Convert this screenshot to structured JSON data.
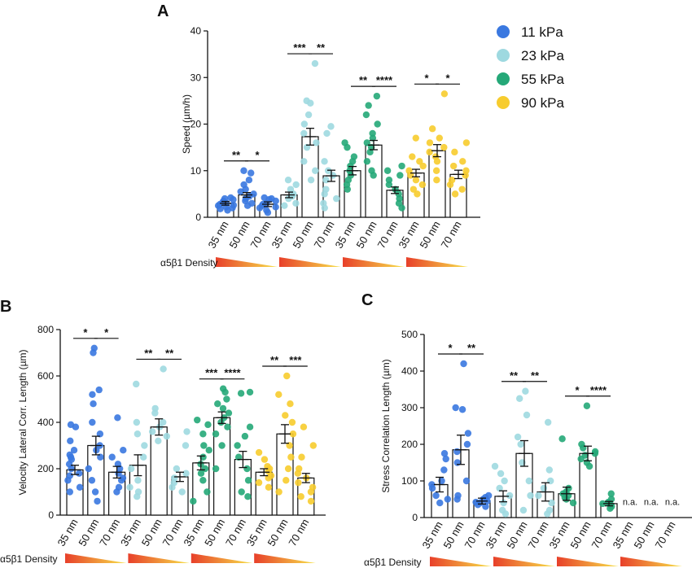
{
  "figure": {
    "density_label": "α5β1 Density",
    "colors": {
      "11 kPa": "#3a78e0",
      "23 kPa": "#9ed9e0",
      "55 kPa": "#25a878",
      "90 kPa": "#f7cc2e"
    }
  },
  "chart_data": [
    {
      "panel": "A",
      "type": "bar",
      "ylabel": "Speed (µm/h)",
      "ylim": [
        0,
        40
      ],
      "yticks": [
        0,
        10,
        20,
        30,
        40
      ],
      "categories": [
        "35 nm",
        "50 nm",
        "70 nm"
      ],
      "legend": {
        "position": "top-right",
        "entries": [
          "11 kPa",
          "23 kPa",
          "55 kPa",
          "90 kPa"
        ]
      },
      "series": [
        {
          "name": "11 kPa",
          "color": "#3a78e0",
          "values": [
            3,
            4.8,
            2.8
          ],
          "errors": [
            0.4,
            0.5,
            0.5
          ],
          "points": [
            [
              2,
              2.5,
              3,
              3.5,
              4,
              1.5,
              2.8,
              3.2,
              2.2,
              3.8,
              4.2,
              1.8,
              2.6
            ],
            [
              3,
              4,
              5,
              6,
              8,
              10,
              9.5,
              2.5,
              4.5,
              3.5,
              5.5,
              7
            ],
            [
              1,
              2,
              2.5,
              3,
              3.5,
              4,
              4.2,
              1.5,
              2.8,
              3.8,
              2.2
            ]
          ]
        },
        {
          "name": "23 kPa",
          "color": "#9ed9e0",
          "values": [
            4.8,
            17.3,
            8.9
          ],
          "errors": [
            0.6,
            1.8,
            1.2
          ],
          "points": [
            [
              3,
              4,
              5,
              6,
              7,
              8,
              2.5,
              4.5
            ],
            [
              33,
              25,
              24.5,
              20,
              18,
              15,
              12,
              10,
              8,
              22,
              16
            ],
            [
              19.5,
              18,
              10,
              8,
              6,
              5,
              4,
              3,
              2,
              12,
              9
            ]
          ]
        },
        {
          "name": "55 kPa",
          "color": "#25a878",
          "values": [
            10,
            15.5,
            5.8
          ],
          "errors": [
            0.9,
            1.0,
            0.7
          ],
          "points": [
            [
              8,
              9,
              10,
              11,
              12,
              15,
              16,
              6,
              13,
              7
            ],
            [
              26,
              24,
              22,
              20,
              18,
              16,
              14,
              12,
              10,
              9,
              15,
              17
            ],
            [
              11,
              9,
              7,
              6,
              5,
              4,
              3,
              2,
              8,
              10
            ]
          ]
        },
        {
          "name": "90 kPa",
          "color": "#f7cc2e",
          "values": [
            9.5,
            14.3,
            9.2
          ],
          "errors": [
            0.8,
            1.3,
            0.9
          ],
          "points": [
            [
              17,
              13,
              11,
              10,
              9,
              8,
              7,
              6,
              5,
              12
            ],
            [
              26.5,
              19,
              17,
              16,
              14,
              12,
              10,
              8,
              15,
              13
            ],
            [
              16,
              14,
              12,
              10,
              8,
              7,
              6,
              5,
              11,
              9
            ]
          ]
        }
      ],
      "significance": [
        {
          "group": 0,
          "from": 0,
          "to": 1,
          "label": "**"
        },
        {
          "group": 0,
          "from": 1,
          "to": 2,
          "label": "*"
        },
        {
          "group": 1,
          "from": 0,
          "to": 1,
          "label": "***"
        },
        {
          "group": 1,
          "from": 1,
          "to": 2,
          "label": "**"
        },
        {
          "group": 2,
          "from": 0,
          "to": 1,
          "label": "**"
        },
        {
          "group": 2,
          "from": 1,
          "to": 2,
          "label": "****"
        },
        {
          "group": 3,
          "from": 0,
          "to": 1,
          "label": "*"
        },
        {
          "group": 3,
          "from": 1,
          "to": 2,
          "label": "*"
        }
      ]
    },
    {
      "panel": "B",
      "type": "bar",
      "ylabel": "Velocity Lateral Corr. Length (µm)",
      "ylim": [
        0,
        800
      ],
      "yticks": [
        0,
        200,
        400,
        600,
        800
      ],
      "categories": [
        "35 nm",
        "50 nm",
        "70 nm"
      ],
      "series": [
        {
          "name": "11 kPa",
          "color": "#3a78e0",
          "values": [
            195,
            300,
            185
          ],
          "errors": [
            20,
            40,
            25
          ],
          "points": [
            [
              100,
              150,
              180,
              200,
              220,
              250,
              280,
              320,
              380,
              390,
              120,
              170,
              240,
              260
            ],
            [
              720,
              700,
              540,
              520,
              480,
              350,
              300,
              250,
              200,
              150,
              100,
              60,
              400,
              280
            ],
            [
              420,
              280,
              250,
              200,
              180,
              150,
              120,
              100,
              220,
              160
            ]
          ]
        },
        {
          "name": "23 kPa",
          "color": "#9ed9e0",
          "values": [
            215,
            380,
            165
          ],
          "errors": [
            45,
            35,
            20
          ],
          "points": [
            [
              565,
              400,
              300,
              250,
              200,
              150,
              120,
              100,
              80,
              350
            ],
            [
              630,
              460,
              440,
              400,
              380,
              360,
              340,
              320
            ],
            [
              360,
              300,
              200,
              180,
              160,
              140,
              120,
              100
            ]
          ]
        },
        {
          "name": "55 kPa",
          "color": "#25a878",
          "values": [
            225,
            420,
            240
          ],
          "errors": [
            30,
            25,
            35
          ],
          "points": [
            [
              410,
              390,
              350,
              300,
              250,
              220,
              200,
              180,
              150,
              100,
              60,
              280
            ],
            [
              545,
              530,
              500,
              480,
              460,
              440,
              420,
              400,
              380,
              350,
              300,
              200
            ],
            [
              530,
              525,
              380,
              300,
              250,
              200,
              150,
              100,
              80,
              340
            ]
          ]
        },
        {
          "name": "90 kPa",
          "color": "#f7cc2e",
          "values": [
            185,
            350,
            160
          ],
          "errors": [
            15,
            40,
            20
          ],
          "points": [
            [
              270,
              240,
              210,
              190,
              170,
              160,
              140,
              120,
              200
            ],
            [
              600,
              520,
              480,
              400,
              350,
              300,
              250,
              200,
              150,
              100,
              430
            ],
            [
              380,
              300,
              250,
              200,
              180,
              160,
              140,
              120,
              100,
              80,
              60
            ]
          ]
        }
      ],
      "significance": [
        {
          "group": 0,
          "from": 0,
          "to": 1,
          "label": "*"
        },
        {
          "group": 0,
          "from": 1,
          "to": 2,
          "label": "*"
        },
        {
          "group": 1,
          "from": 0,
          "to": 1,
          "label": "**"
        },
        {
          "group": 1,
          "from": 1,
          "to": 2,
          "label": "**"
        },
        {
          "group": 2,
          "from": 0,
          "to": 1,
          "label": "***"
        },
        {
          "group": 2,
          "from": 1,
          "to": 2,
          "label": "****"
        },
        {
          "group": 3,
          "from": 0,
          "to": 1,
          "label": "**"
        },
        {
          "group": 3,
          "from": 1,
          "to": 2,
          "label": "***"
        }
      ]
    },
    {
      "panel": "C",
      "type": "bar",
      "ylabel": "Stress Correlation Length (µm)",
      "ylim": [
        0,
        500
      ],
      "yticks": [
        0,
        100,
        200,
        300,
        400,
        500
      ],
      "categories": [
        "35 nm",
        "50 nm",
        "70 nm"
      ],
      "series": [
        {
          "name": "11 kPa",
          "color": "#3a78e0",
          "values": [
            90,
            185,
            45
          ],
          "errors": [
            20,
            40,
            8
          ],
          "points": [
            [
              175,
              160,
              130,
              100,
              80,
              60,
              50,
              40,
              90
            ],
            [
              420,
              300,
              295,
              200,
              180,
              150,
              100,
              60,
              50,
              230
            ],
            [
              60,
              55,
              50,
              45,
              40,
              35,
              30,
              42
            ]
          ]
        },
        {
          "name": "23 kPa",
          "color": "#9ed9e0",
          "values": [
            58,
            175,
            70
          ],
          "errors": [
            15,
            35,
            25
          ],
          "points": [
            [
              140,
              120,
              80,
              60,
              40,
              20,
              10,
              100
            ],
            [
              345,
              325,
              280,
              220,
              200,
              150,
              100,
              60,
              20
            ],
            [
              260,
              130,
              100,
              80,
              60,
              40,
              20,
              10
            ]
          ]
        },
        {
          "name": "55 kPa",
          "color": "#25a878",
          "values": [
            65,
            175,
            38
          ],
          "errors": [
            18,
            20,
            6
          ],
          "points": [
            [
              215,
              80,
              70,
              60,
              50,
              40,
              65,
              55
            ],
            [
              305,
              200,
              190,
              180,
              170,
              160,
              150,
              140,
              175
            ],
            [
              65,
              50,
              40,
              35,
              30,
              25,
              42,
              38
            ]
          ]
        },
        {
          "name": "90 kPa",
          "color": "#f7cc2e",
          "values": [
            null,
            null,
            null
          ],
          "errors": [
            null,
            null,
            null
          ],
          "points": [
            [],
            [],
            []
          ]
        }
      ],
      "na_label": "n.a.",
      "significance": [
        {
          "group": 0,
          "from": 0,
          "to": 1,
          "label": "*"
        },
        {
          "group": 0,
          "from": 1,
          "to": 2,
          "label": "**"
        },
        {
          "group": 1,
          "from": 0,
          "to": 1,
          "label": "**"
        },
        {
          "group": 1,
          "from": 1,
          "to": 2,
          "label": "**"
        },
        {
          "group": 2,
          "from": 0,
          "to": 1,
          "label": "*"
        },
        {
          "group": 2,
          "from": 1,
          "to": 2,
          "label": "****"
        }
      ]
    }
  ]
}
